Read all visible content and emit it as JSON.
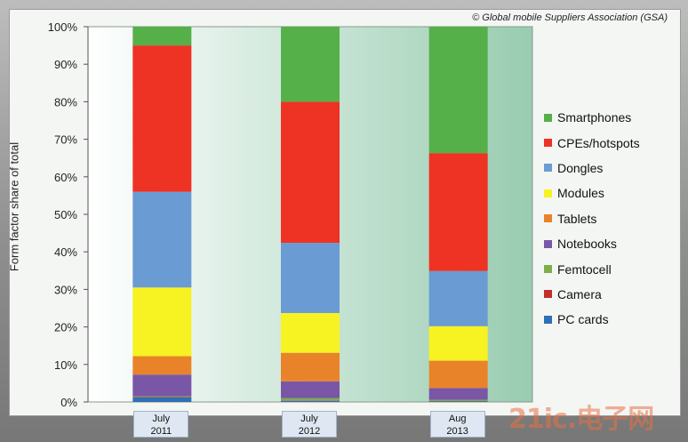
{
  "chart_data": {
    "type": "bar",
    "stacked": true,
    "copyright": "© Global mobile Suppliers Association (GSA)",
    "ylabel": "Form factor share of total",
    "ylim": [
      0,
      100
    ],
    "yticks": [
      "0%",
      "10%",
      "20%",
      "30%",
      "40%",
      "50%",
      "60%",
      "70%",
      "80%",
      "90%",
      "100%"
    ],
    "categories": [
      [
        "July",
        "2011"
      ],
      [
        "July",
        "2012"
      ],
      [
        "Aug",
        "2013"
      ]
    ],
    "series": [
      {
        "name": "PC cards",
        "color": "#2f6fb5",
        "values": [
          1.2,
          0.3,
          0.2
        ]
      },
      {
        "name": "Camera",
        "color": "#c0302a",
        "values": [
          0.1,
          0.1,
          0.1
        ]
      },
      {
        "name": "Femtocell",
        "color": "#7fae4a",
        "values": [
          0.2,
          0.6,
          0.3
        ]
      },
      {
        "name": "Notebooks",
        "color": "#7a56a6",
        "values": [
          5.8,
          4.5,
          3.1
        ]
      },
      {
        "name": "Tablets",
        "color": "#e9832a",
        "values": [
          4.9,
          7.6,
          7.3
        ]
      },
      {
        "name": "Modules",
        "color": "#f7f222",
        "values": [
          18.3,
          10.6,
          9.2
        ]
      },
      {
        "name": "Dongles",
        "color": "#6b9bd3",
        "values": [
          25.5,
          18.7,
          14.7
        ]
      },
      {
        "name": "CPEs/hotspots",
        "color": "#ee3224",
        "values": [
          39.0,
          37.6,
          31.4
        ]
      },
      {
        "name": "Smartphones",
        "color": "#56b04a",
        "values": [
          5.0,
          20.0,
          33.7
        ]
      }
    ]
  },
  "watermark": "21ic.电子网"
}
